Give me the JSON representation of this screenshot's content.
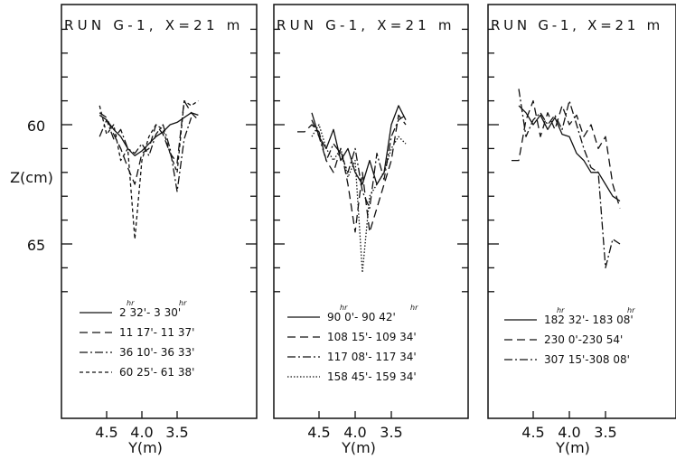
{
  "chart_data": [
    {
      "type": "line",
      "title": "RUN G-1, X=21 m",
      "xlabel": "Y(m)",
      "ylabel": "Z(cm)",
      "x_ticks": [
        "4.5",
        "4.0",
        "3.5"
      ],
      "y_ticks": [
        "60",
        "65"
      ],
      "xlim": [
        4.85,
        3.15
      ],
      "ylim": [
        67.9,
        55.3
      ],
      "y_inverted": true,
      "hr_superscripts": true,
      "series": [
        {
          "name": "2 32'- 3 30'",
          "hr_a": "hr",
          "hr_b": "hr",
          "dash": "solid",
          "x": [
            4.6,
            4.5,
            4.4,
            4.3,
            4.2,
            4.1,
            4.0,
            3.9,
            3.8,
            3.7,
            3.6,
            3.5,
            3.4,
            3.3,
            3.2
          ],
          "y": [
            59.6,
            59.8,
            60.2,
            60.5,
            61.0,
            61.3,
            61.1,
            60.8,
            60.5,
            60.3,
            60.0,
            59.9,
            59.7,
            59.5,
            59.6
          ]
        },
        {
          "name": "11 17'- 11 37'",
          "dash": "long-dash",
          "x": [
            4.6,
            4.5,
            4.4,
            4.3,
            4.2,
            4.1,
            4.0,
            3.9,
            3.8,
            3.7,
            3.6,
            3.5,
            3.4,
            3.3,
            3.2
          ],
          "y": [
            59.5,
            59.7,
            60.4,
            61.0,
            61.8,
            62.5,
            61.2,
            61.0,
            60.0,
            60.4,
            61.2,
            61.6,
            59.0,
            59.5,
            59.8
          ]
        },
        {
          "name": "36 10'- 36 33'",
          "dash": "dash-dot",
          "x": [
            4.6,
            4.5,
            4.4,
            4.3,
            4.2,
            4.1,
            4.0,
            3.9,
            3.8,
            3.7,
            3.6,
            3.5,
            3.4,
            3.3
          ],
          "y": [
            60.5,
            59.8,
            60.6,
            60.2,
            61.0,
            61.2,
            60.8,
            61.3,
            60.4,
            60.0,
            61.0,
            62.8,
            60.6,
            59.7
          ]
        },
        {
          "name": "60 25'- 61 38'",
          "dash": "short-dash",
          "x": [
            4.6,
            4.5,
            4.4,
            4.3,
            4.2,
            4.1,
            4.0,
            3.9,
            3.8,
            3.7,
            3.6,
            3.5,
            3.4,
            3.3,
            3.2
          ],
          "y": [
            59.2,
            60.4,
            60.0,
            61.5,
            61.0,
            64.8,
            61.5,
            60.5,
            60.0,
            60.2,
            61.2,
            62.0,
            59.0,
            59.2,
            59.0
          ]
        }
      ]
    },
    {
      "type": "line",
      "title": "RUN G-1, X=21 m",
      "xlabel": "Y(m)",
      "x_ticks": [
        "4.5",
        "4.0",
        "3.5"
      ],
      "xlim": [
        4.85,
        3.15
      ],
      "ylim": [
        67.9,
        55.3
      ],
      "y_inverted": true,
      "hr_superscripts": true,
      "series": [
        {
          "name": "90 0'- 90 42'",
          "hr_a": "hr",
          "hr_b": "hr",
          "dash": "solid",
          "x": [
            4.6,
            4.5,
            4.4,
            4.3,
            4.2,
            4.1,
            4.0,
            3.9,
            3.8,
            3.7,
            3.6,
            3.5,
            3.4,
            3.3
          ],
          "y": [
            59.5,
            60.5,
            61.0,
            60.2,
            61.5,
            61.0,
            62.0,
            62.5,
            61.5,
            62.5,
            62.0,
            60.0,
            59.2,
            59.8
          ]
        },
        {
          "name": "108 15'- 109 34'",
          "dash": "long-dash",
          "x": [
            4.8,
            4.7,
            4.6,
            4.5,
            4.4,
            4.3,
            4.2,
            4.1,
            4.0,
            3.9,
            3.8,
            3.7,
            3.6,
            3.5,
            3.4,
            3.3
          ],
          "y": [
            60.3,
            60.3,
            60.0,
            60.3,
            61.5,
            62.0,
            61.0,
            62.5,
            64.5,
            62.0,
            64.5,
            63.5,
            62.5,
            61.5,
            59.6,
            60.0
          ]
        },
        {
          "name": "117 08'- 117 34'",
          "dash": "dash-dot",
          "x": [
            4.6,
            4.5,
            4.4,
            4.3,
            4.2,
            4.1,
            4.0,
            3.9,
            3.8,
            3.7,
            3.6,
            3.5,
            3.4,
            3.3
          ],
          "y": [
            59.8,
            60.5,
            61.5,
            60.8,
            61.2,
            62.0,
            61.0,
            62.8,
            63.5,
            61.2,
            62.3,
            60.5,
            59.8,
            59.6
          ]
        },
        {
          "name": "158 45'- 159 34'",
          "dash": "dotted",
          "x": [
            4.6,
            4.5,
            4.4,
            4.3,
            4.2,
            4.1,
            4.0,
            3.9,
            3.8,
            3.7,
            3.6,
            3.5,
            3.4,
            3.3
          ],
          "y": [
            60.5,
            60.0,
            61.0,
            61.5,
            61.0,
            62.2,
            61.5,
            66.2,
            63.0,
            62.5,
            62.0,
            61.0,
            60.5,
            60.8
          ]
        }
      ]
    },
    {
      "type": "line",
      "title": "RUN G-1, X=21 m",
      "xlabel": "Y(m)",
      "x_ticks": [
        "4.5",
        "4.0",
        "3.5"
      ],
      "xlim": [
        4.85,
        3.15
      ],
      "ylim": [
        67.9,
        55.3
      ],
      "y_inverted": true,
      "hr_superscripts": true,
      "series": [
        {
          "name": "182 32'- 183 08'",
          "hr_a": "hr",
          "hr_b": "hr",
          "dash": "solid",
          "x": [
            4.7,
            4.6,
            4.5,
            4.4,
            4.3,
            4.2,
            4.1,
            4.0,
            3.9,
            3.8,
            3.7,
            3.6,
            3.5,
            3.4,
            3.3
          ],
          "y": [
            59.2,
            59.5,
            60.0,
            59.6,
            60.2,
            59.7,
            60.4,
            60.5,
            61.2,
            61.5,
            62.0,
            62.0,
            62.5,
            63.0,
            63.2
          ]
        },
        {
          "name": "230 0'-230 54'",
          "dash": "long-dash",
          "x": [
            4.8,
            4.7,
            4.6,
            4.5,
            4.4,
            4.3,
            4.2,
            4.1,
            4.0,
            3.9,
            3.8,
            3.7,
            3.6,
            3.5,
            3.4,
            3.3
          ],
          "y": [
            61.5,
            61.5,
            59.8,
            59.0,
            60.5,
            59.5,
            60.2,
            59.2,
            60.0,
            59.6,
            60.5,
            60.0,
            61.0,
            60.5,
            62.5,
            63.5
          ]
        },
        {
          "name": "307 15'-308 08'",
          "dash": "dash-dot",
          "x": [
            4.7,
            4.6,
            4.5,
            4.4,
            4.3,
            4.2,
            4.1,
            4.0,
            3.9,
            3.8,
            3.7,
            3.6,
            3.5,
            3.4,
            3.3
          ],
          "y": [
            58.5,
            60.5,
            59.8,
            59.5,
            60.0,
            59.6,
            60.2,
            59.0,
            60.0,
            61.0,
            61.8,
            62.0,
            66.0,
            64.8,
            65.0
          ]
        }
      ]
    }
  ]
}
